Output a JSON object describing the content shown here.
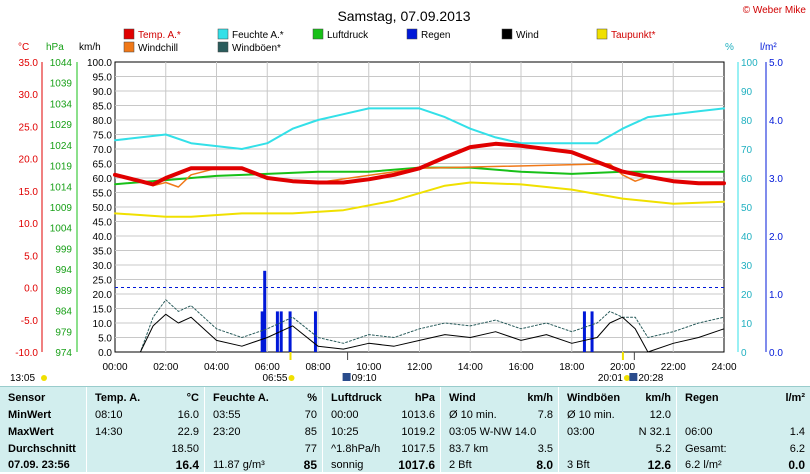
{
  "title": "Samstag, 07.09.2013",
  "copyright": "© Weber Mike",
  "legend": [
    {
      "name": "Temp. A.*",
      "color": "#e00000"
    },
    {
      "name": "Feuchte A.*",
      "color": "#33e0e8"
    },
    {
      "name": "Luftdruck",
      "color": "#18c018"
    },
    {
      "name": "Regen",
      "color": "#0018d8"
    },
    {
      "name": "Wind",
      "color": "#000000"
    },
    {
      "name": "Taupunkt*",
      "color": "#f0e000"
    },
    {
      "name": "Windchill",
      "color": "#f07818"
    },
    {
      "name": "Windböen*",
      "color": "#2a5c5c"
    }
  ],
  "axes": {
    "temp_unit": "°C",
    "press_unit": "hPa",
    "wind_unit": "km/h",
    "hum_unit": "%",
    "rain_unit": "l/m²",
    "temp_ticks": [
      "35.0",
      "30.0",
      "25.0",
      "20.0",
      "15.0",
      "10.0",
      "5.0",
      "0.0",
      "-5.0",
      "-10.0"
    ],
    "press_ticks": [
      "1044",
      "1039",
      "1034",
      "1029",
      "1024",
      "1019",
      "1014",
      "1009",
      "1004",
      "999",
      "994",
      "989",
      "984",
      "979",
      "974"
    ],
    "wind_ticks": [
      "100.0",
      "95.0",
      "90.0",
      "85.0",
      "80.0",
      "75.0",
      "70.0",
      "65.0",
      "60.0",
      "55.0",
      "50.0",
      "45.0",
      "40.0",
      "35.0",
      "30.0",
      "25.0",
      "20.0",
      "15.0",
      "10.0",
      "5.0",
      "0.0"
    ],
    "hum_ticks": [
      "100",
      "90",
      "80",
      "70",
      "60",
      "50",
      "40",
      "30",
      "20",
      "10",
      "0"
    ],
    "rain_ticks": [
      "5.0",
      "4.0",
      "3.0",
      "2.0",
      "1.0",
      "0.0"
    ],
    "time_ticks": [
      "00:00",
      "02:00",
      "04:00",
      "06:00",
      "08:00",
      "10:00",
      "12:00",
      "14:00",
      "16:00",
      "18:00",
      "20:00",
      "22:00",
      "24:00"
    ]
  },
  "markers": {
    "left_time": "13:05",
    "sunrise": "06:55",
    "moonrise": "09:10",
    "sunset": "20:01",
    "moonset": "20:28"
  },
  "chart_data": {
    "type": "line",
    "x_unit": "hour",
    "x_range": [
      0,
      24
    ],
    "series": [
      {
        "name": "Temp. A.*",
        "axis": "°C",
        "x": [
          0,
          1,
          1.5,
          2,
          3,
          4,
          5,
          6,
          7,
          8,
          9,
          10,
          11,
          12,
          13,
          14,
          15,
          16,
          17,
          18,
          19,
          20,
          21,
          22,
          23,
          24
        ],
        "y": [
          17.5,
          16.5,
          16,
          17,
          18.5,
          18.5,
          18.5,
          17,
          16.5,
          16.3,
          16.3,
          16.8,
          17.5,
          18.5,
          20.2,
          21.8,
          22.3,
          22,
          21.5,
          21,
          19.5,
          18,
          17.2,
          16.5,
          16.2,
          16.2
        ]
      },
      {
        "name": "Windchill",
        "axis": "°C",
        "x": [
          0,
          1,
          1.5,
          2,
          2.5,
          3,
          4,
          5,
          6,
          7,
          8,
          12,
          19.5,
          20,
          20.5,
          21,
          22,
          24
        ],
        "y": [
          17.5,
          16.5,
          15.8,
          16.3,
          15.6,
          17.5,
          18.5,
          18.5,
          17,
          16.5,
          16.3,
          18.5,
          19.2,
          17.5,
          16.5,
          17.2,
          16.5,
          16.2
        ]
      },
      {
        "name": "Taupunkt*",
        "axis": "°C",
        "x": [
          0,
          2,
          3,
          5,
          7,
          9,
          11,
          13,
          14,
          16,
          18,
          20,
          22,
          24
        ],
        "y": [
          11.5,
          11,
          11,
          11.5,
          11.5,
          12,
          13.5,
          15.8,
          16.3,
          16,
          15.2,
          13.8,
          13,
          13.3
        ]
      },
      {
        "name": "Feuchte A.*",
        "axis": "%",
        "x": [
          0,
          1,
          2,
          3,
          4,
          5,
          6,
          7,
          8,
          9,
          10,
          11,
          12,
          13,
          14,
          15,
          16,
          17,
          18,
          19,
          20,
          21,
          22,
          23,
          24
        ],
        "y": [
          73,
          74,
          75,
          72,
          71,
          70,
          72,
          77,
          80,
          82,
          84,
          84,
          84,
          81,
          77,
          74,
          72,
          72,
          72,
          72,
          77,
          81,
          82,
          83,
          84
        ]
      },
      {
        "name": "Luftdruck",
        "axis": "hPa",
        "x": [
          0,
          2,
          4,
          6,
          8,
          10,
          12,
          14,
          16,
          18,
          20,
          22,
          24
        ],
        "y": [
          1014.5,
          1015.5,
          1016.5,
          1017,
          1017.5,
          1017.5,
          1018.5,
          1018.5,
          1017.5,
          1017,
          1017.5,
          1017.5,
          1017.5
        ]
      },
      {
        "name": "Wind",
        "axis": "km/h",
        "x": [
          0,
          1,
          1.5,
          2,
          2.5,
          3,
          4,
          5,
          6,
          7,
          8,
          9,
          10,
          11,
          12,
          13,
          14,
          15,
          16,
          17,
          18,
          19,
          19.5,
          20,
          20.5,
          21,
          22,
          23,
          24
        ],
        "y": [
          0,
          0,
          9,
          13,
          10,
          12,
          4,
          2,
          5,
          9,
          2,
          1,
          3,
          2,
          4,
          6,
          5,
          7,
          4,
          6,
          3,
          5,
          10,
          12,
          8,
          0,
          3,
          5,
          8
        ]
      },
      {
        "name": "Windböen*",
        "axis": "km/h",
        "x": [
          0,
          1,
          1.5,
          2,
          2.5,
          3,
          4,
          5,
          6,
          7,
          8,
          9,
          10,
          11,
          12,
          13,
          14,
          15,
          16,
          17,
          18,
          19,
          19.5,
          20,
          20.5,
          21,
          22,
          23,
          24
        ],
        "y": [
          0,
          0,
          12,
          18,
          14,
          16,
          8,
          5,
          8,
          12,
          5,
          3,
          6,
          5,
          8,
          10,
          9,
          11,
          8,
          10,
          7,
          10,
          14,
          12,
          12,
          5,
          7,
          10,
          12
        ]
      },
      {
        "name": "Regen",
        "axis": "l/m²",
        "x": [
          5.8,
          5.9,
          6.4,
          6.55,
          6.9,
          7.9,
          18.5,
          18.8
        ],
        "y": [
          0.7,
          1.4,
          0.7,
          0.7,
          0.7,
          0.7,
          0.7,
          0.7
        ]
      }
    ],
    "reference": {
      "axis": "°C",
      "y": 0
    }
  },
  "table": {
    "headers": {
      "sensor": "Sensor",
      "temp": "Temp. A.",
      "temp_unit": "°C",
      "hum": "Feuchte A.",
      "hum_unit": "%",
      "press": "Luftdruck",
      "press_unit": "hPa",
      "wind": "Wind",
      "wind_unit": "km/h",
      "gust": "Windböen",
      "gust_unit": "km/h",
      "rain": "Regen",
      "rain_unit": "l/m²"
    },
    "row_labels": [
      "MinWert",
      "MaxWert",
      "Durchschnitt",
      "07.09.  23:56"
    ],
    "temp": [
      [
        "08:10",
        "16.0"
      ],
      [
        "14:30",
        "22.9"
      ],
      [
        "",
        "18.50"
      ],
      [
        "",
        "16.4"
      ]
    ],
    "hum": [
      [
        "03:55",
        "70"
      ],
      [
        "23:20",
        "85"
      ],
      [
        "",
        "77"
      ],
      [
        "11.87 g/m³",
        "85"
      ]
    ],
    "press": [
      [
        "00:00",
        "1013.6"
      ],
      [
        "10:25",
        "1019.2"
      ],
      [
        "^1.8hPa/h",
        "1017.5"
      ],
      [
        "sonnig",
        "1017.6"
      ]
    ],
    "wind": [
      [
        "Ø 10 min.",
        "7.8"
      ],
      [
        "03:05   W-NW 14.0",
        ""
      ],
      [
        "83.7 km",
        "3.5"
      ],
      [
        "2 Bft",
        "8.0"
      ]
    ],
    "gust": [
      [
        "Ø 10 min.",
        "12.0"
      ],
      [
        "03:00",
        "N 32.1"
      ],
      [
        "",
        "5.2"
      ],
      [
        "3 Bft",
        "12.6"
      ]
    ],
    "rain": [
      [
        "",
        ""
      ],
      [
        "06:00",
        "1.4"
      ],
      [
        "Gesamt:",
        "6.2"
      ],
      [
        "6.2 l/m²",
        "0.0"
      ]
    ]
  }
}
